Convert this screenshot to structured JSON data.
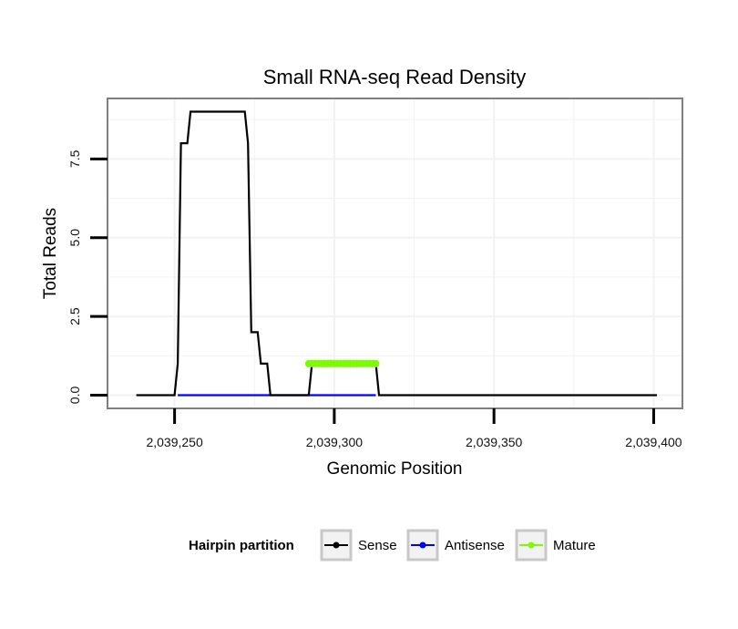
{
  "chart_data": {
    "type": "line",
    "title": "Small RNA-seq Read Density",
    "xlabel": "Genomic Position",
    "ylabel": "Total Reads",
    "xlim": [
      2039229,
      2039409
    ],
    "ylim": [
      -0.42,
      9.42
    ],
    "x_ticks": [
      2039250,
      2039300,
      2039350,
      2039400
    ],
    "x_tick_labels": [
      "2,039,250",
      "2,039,300",
      "2,039,350",
      "2,039,400"
    ],
    "y_ticks": [
      0,
      2.5,
      5,
      7.5
    ],
    "y_tick_labels": [
      "0.0",
      "2.5",
      "5.0",
      "7.5"
    ],
    "grid": true,
    "legend": {
      "title": "Hairpin partition",
      "position": "bottom",
      "entries": [
        {
          "name": "Sense",
          "color": "#000000"
        },
        {
          "name": "Antisense",
          "color": "#0000ff"
        },
        {
          "name": "Mature",
          "color": "#7cfc00"
        }
      ]
    },
    "series": [
      {
        "name": "Sense",
        "color": "#000000",
        "x": [
          2039238,
          2039250,
          2039251,
          2039252,
          2039254,
          2039255,
          2039272,
          2039273,
          2039274,
          2039276,
          2039277,
          2039279,
          2039280,
          2039292,
          2039293,
          2039313,
          2039314,
          2039401
        ],
        "y": [
          0,
          0,
          1,
          8,
          8,
          9,
          9,
          8,
          2,
          2,
          1,
          1,
          0,
          0,
          1,
          1,
          0,
          0
        ]
      },
      {
        "name": "Antisense",
        "color": "#0000ff",
        "x": [
          2039251,
          2039313
        ],
        "y": [
          0,
          0
        ]
      },
      {
        "name": "Mature",
        "color": "#7cfc00",
        "x": [
          2039292,
          2039293,
          2039294,
          2039295,
          2039296,
          2039297,
          2039298,
          2039299,
          2039300,
          2039301,
          2039302,
          2039303,
          2039304,
          2039305,
          2039306,
          2039307,
          2039308,
          2039309,
          2039310,
          2039311,
          2039312,
          2039313
        ],
        "y": [
          1,
          1,
          1,
          1,
          1,
          1,
          1,
          1,
          1,
          1,
          1,
          1,
          1,
          1,
          1,
          1,
          1,
          1,
          1,
          1,
          1,
          1
        ]
      }
    ]
  }
}
